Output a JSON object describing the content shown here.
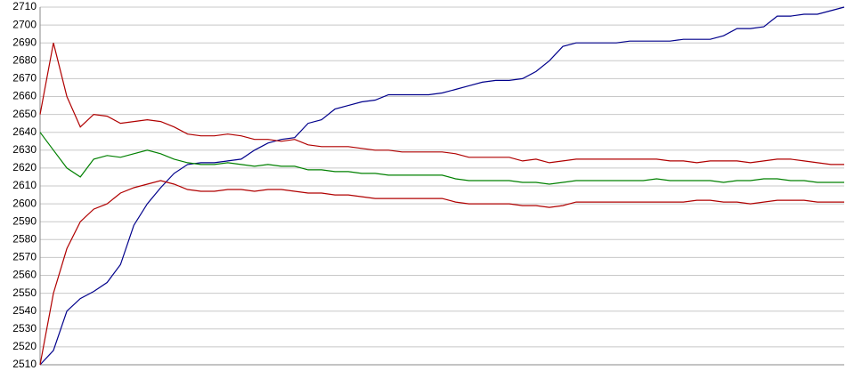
{
  "chart_data": {
    "type": "line",
    "categories": [
      null,
      null,
      null,
      null,
      null,
      null,
      null,
      null,
      null,
      null,
      null,
      null,
      null,
      null,
      null,
      null,
      null,
      null,
      null,
      null,
      null,
      null,
      null,
      null,
      null,
      null,
      null,
      null,
      null,
      null,
      null,
      null,
      null,
      null,
      null,
      null,
      null,
      null,
      null,
      null,
      null,
      null,
      null,
      null,
      null,
      null,
      null,
      null,
      null,
      null,
      null,
      null,
      null,
      null,
      null,
      null,
      null,
      null,
      null,
      null,
      null
    ],
    "series": [
      {
        "color": "#00008b",
        "values": [
          2510,
          2518,
          2540,
          2547,
          2551,
          2556,
          2566,
          2588,
          2600,
          2609,
          2617,
          2622,
          2623,
          2623,
          2624,
          2625,
          2630,
          2634,
          2636,
          2637,
          2645,
          2647,
          2653,
          2655,
          2657,
          2658,
          2661,
          2661,
          2661,
          2661,
          2662,
          2664,
          2666,
          2668,
          2669,
          2669,
          2670,
          2674,
          2680,
          2688,
          2690,
          2690,
          2690,
          2690,
          2691,
          2691,
          2691,
          2691,
          2692,
          2692,
          2692,
          2694,
          2698,
          2698,
          2699,
          2705,
          2705,
          2706,
          2706,
          2708,
          2710
        ]
      },
      {
        "color": "#b00000",
        "values": [
          2650,
          2690,
          2660,
          2643,
          2650,
          2649,
          2645,
          2646,
          2647,
          2646,
          2643,
          2639,
          2638,
          2638,
          2639,
          2638,
          2636,
          2636,
          2635,
          2636,
          2633,
          2632,
          2632,
          2632,
          2631,
          2630,
          2630,
          2629,
          2629,
          2629,
          2629,
          2628,
          2626,
          2626,
          2626,
          2626,
          2624,
          2625,
          2623,
          2624,
          2625,
          2625,
          2625,
          2625,
          2625,
          2625,
          2625,
          2624,
          2624,
          2623,
          2624,
          2624,
          2624,
          2623,
          2624,
          2625,
          2625,
          2624,
          2623,
          2622,
          2622
        ]
      },
      {
        "color": "#008000",
        "values": [
          2640,
          2630,
          2620,
          2615,
          2625,
          2627,
          2626,
          2628,
          2630,
          2628,
          2625,
          2623,
          2622,
          2622,
          2623,
          2622,
          2621,
          2622,
          2621,
          2621,
          2619,
          2619,
          2618,
          2618,
          2617,
          2617,
          2616,
          2616,
          2616,
          2616,
          2616,
          2614,
          2613,
          2613,
          2613,
          2613,
          2612,
          2612,
          2611,
          2612,
          2613,
          2613,
          2613,
          2613,
          2613,
          2613,
          2614,
          2613,
          2613,
          2613,
          2613,
          2612,
          2613,
          2613,
          2614,
          2614,
          2613,
          2613,
          2612,
          2612,
          2612
        ]
      },
      {
        "color": "#b00000",
        "values": [
          2510,
          2550,
          2575,
          2590,
          2597,
          2600,
          2606,
          2609,
          2611,
          2613,
          2611,
          2608,
          2607,
          2607,
          2608,
          2608,
          2607,
          2608,
          2608,
          2607,
          2606,
          2606,
          2605,
          2605,
          2604,
          2603,
          2603,
          2603,
          2603,
          2603,
          2603,
          2601,
          2600,
          2600,
          2600,
          2600,
          2599,
          2599,
          2598,
          2599,
          2601,
          2601,
          2601,
          2601,
          2601,
          2601,
          2601,
          2601,
          2601,
          2602,
          2602,
          2601,
          2601,
          2600,
          2601,
          2602,
          2602,
          2602,
          2601,
          2601,
          2601
        ]
      }
    ],
    "ylim": [
      2510,
      2710
    ],
    "yticks": [
      2510,
      2520,
      2530,
      2540,
      2550,
      2560,
      2570,
      2580,
      2590,
      2600,
      2610,
      2620,
      2630,
      2640,
      2650,
      2660,
      2670,
      2680,
      2690,
      2700,
      2710
    ],
    "grid": true
  }
}
